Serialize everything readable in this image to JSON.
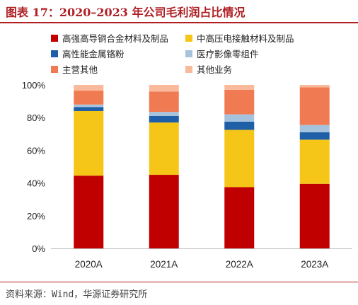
{
  "title": "图表 17：2020–2023 年公司毛利润占比情况",
  "source": "资料来源：Wind，华源证券研究所",
  "chart_data": {
    "type": "bar",
    "stacked": true,
    "categories": [
      "2020A",
      "2021A",
      "2022A",
      "2023A"
    ],
    "ylim": [
      0,
      100
    ],
    "yticks": [
      "0%",
      "20%",
      "40%",
      "60%",
      "80%",
      "100%"
    ],
    "legend_position": "top",
    "series": [
      {
        "name": "高强高导铜合金材料及制品",
        "color": "#c00000",
        "values": [
          44.5,
          45,
          37.5,
          39.5
        ]
      },
      {
        "name": "中高压电接触材料及制品",
        "color": "#f5c518",
        "values": [
          39.5,
          32,
          35,
          27
        ]
      },
      {
        "name": "高性能金属铬粉",
        "color": "#1f5fa8",
        "values": [
          2.5,
          4,
          5,
          4.5
        ]
      },
      {
        "name": "医疗影像零组件",
        "color": "#a6c3dd",
        "values": [
          1.5,
          2.5,
          4.5,
          4.5
        ]
      },
      {
        "name": "主营其他",
        "color": "#f07a52",
        "values": [
          8.5,
          12.5,
          15,
          23
        ]
      },
      {
        "name": "其他业务",
        "color": "#f9b99b",
        "values": [
          3.5,
          4,
          3,
          1.5
        ]
      }
    ]
  }
}
